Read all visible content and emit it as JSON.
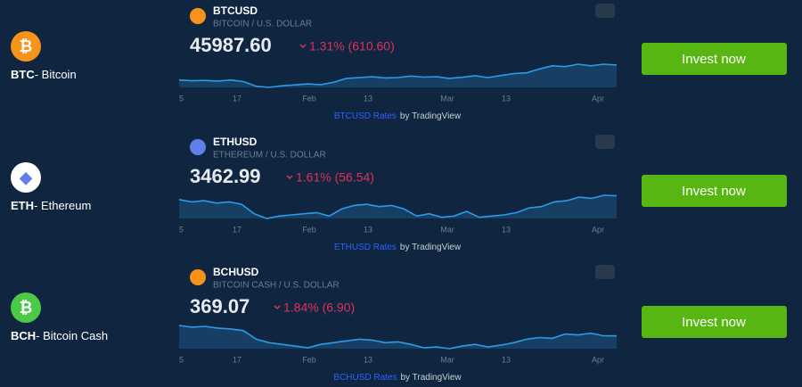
{
  "rows": [
    {
      "ticker": "BTC",
      "name": "- Bitcoin",
      "icon_color": "#f7931a",
      "icon_glyph": "₿",
      "widget": {
        "symbol": "BTCUSD",
        "description": "BITCOIN / U.S. DOLLAR",
        "price": "45987.60",
        "change": "1.31% (610.60)",
        "axis_labels": [
          "5",
          "17",
          "Feb",
          "13",
          "Mar",
          "13",
          "Apr"
        ],
        "sparkline": [
          36500,
          36000,
          36200,
          35800,
          36500,
          35500,
          32500,
          31800,
          32800,
          33400,
          34000,
          33500,
          35000,
          37500,
          38000,
          38500,
          37800,
          38000,
          39000,
          38300,
          38600,
          37500,
          38200,
          39200,
          38000,
          39300,
          40500,
          41000,
          43500,
          45500,
          45000,
          46500,
          45500,
          46500,
          45987.6
        ],
        "footer_link": "BTCUSD Rates",
        "footer_text": "by TradingView"
      },
      "button": "Invest now"
    },
    {
      "ticker": "ETH",
      "name": "- Ethereum",
      "icon_color": "#ffffff",
      "icon_glyph": "◆",
      "widget": {
        "symbol": "ETHUSD",
        "description": "ETHEREUM / U.S. DOLLAR",
        "price": "3462.99",
        "change": "1.61% (56.54)",
        "axis_labels": [
          "5",
          "17",
          "Feb",
          "13",
          "Mar",
          "13",
          "Apr"
        ],
        "sparkline": [
          3300,
          3200,
          3250,
          3150,
          3200,
          3100,
          2700,
          2500,
          2600,
          2650,
          2700,
          2750,
          2600,
          2900,
          3050,
          3100,
          3000,
          3050,
          2900,
          2600,
          2700,
          2550,
          2600,
          2800,
          2550,
          2600,
          2650,
          2750,
          2950,
          3000,
          3200,
          3250,
          3400,
          3350,
          3480,
          3462.99
        ],
        "footer_link": "ETHUSD Rates",
        "footer_text": "by TradingView"
      },
      "button": "Invest now"
    },
    {
      "ticker": "BCH",
      "name": "- Bitcoin Cash",
      "icon_color": "#4cc947",
      "icon_glyph": "₿",
      "widget": {
        "symbol": "BCHUSD",
        "description": "BITCOIN CASH / U.S. DOLLAR",
        "price": "369.07",
        "change": "1.84% (6.90)",
        "axis_labels": [
          "5",
          "17",
          "Feb",
          "13",
          "Mar",
          "13",
          "Apr"
        ],
        "sparkline": [
          430,
          420,
          425,
          415,
          410,
          400,
          350,
          330,
          320,
          310,
          300,
          320,
          330,
          340,
          350,
          345,
          330,
          335,
          320,
          300,
          305,
          295,
          310,
          320,
          305,
          315,
          330,
          350,
          360,
          355,
          380,
          375,
          385,
          370,
          369.07
        ],
        "footer_link": "BCHUSD Rates",
        "footer_text": "by TradingView"
      },
      "button": "Invest now"
    }
  ]
}
